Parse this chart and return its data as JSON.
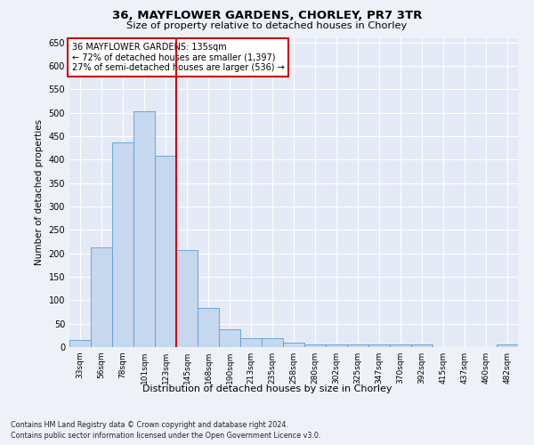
{
  "title1": "36, MAYFLOWER GARDENS, CHORLEY, PR7 3TR",
  "title2": "Size of property relative to detached houses in Chorley",
  "xlabel": "Distribution of detached houses by size in Chorley",
  "ylabel": "Number of detached properties",
  "categories": [
    "33sqm",
    "56sqm",
    "78sqm",
    "101sqm",
    "123sqm",
    "145sqm",
    "168sqm",
    "190sqm",
    "213sqm",
    "235sqm",
    "258sqm",
    "280sqm",
    "302sqm",
    "325sqm",
    "347sqm",
    "370sqm",
    "392sqm",
    "415sqm",
    "437sqm",
    "460sqm",
    "482sqm"
  ],
  "values": [
    15,
    213,
    436,
    503,
    408,
    207,
    84,
    38,
    19,
    19,
    10,
    5,
    5,
    5,
    5,
    5,
    5,
    0,
    0,
    0,
    5
  ],
  "bar_color": "#c5d8ed",
  "bar_edge_color": "#5b9bd5",
  "property_line_color": "#cc0000",
  "annotation_text": "36 MAYFLOWER GARDENS: 135sqm\n← 72% of detached houses are smaller (1,397)\n27% of semi-detached houses are larger (536) →",
  "annotation_box_color": "#ffffff",
  "annotation_box_edge": "#cc0000",
  "ylim": [
    0,
    660
  ],
  "yticks": [
    0,
    50,
    100,
    150,
    200,
    250,
    300,
    350,
    400,
    450,
    500,
    550,
    600,
    650
  ],
  "footer1": "Contains HM Land Registry data © Crown copyright and database right 2024.",
  "footer2": "Contains public sector information licensed under the Open Government Licence v3.0.",
  "bg_color": "#eef2f8",
  "plot_bg_color": "#e4eaf5"
}
